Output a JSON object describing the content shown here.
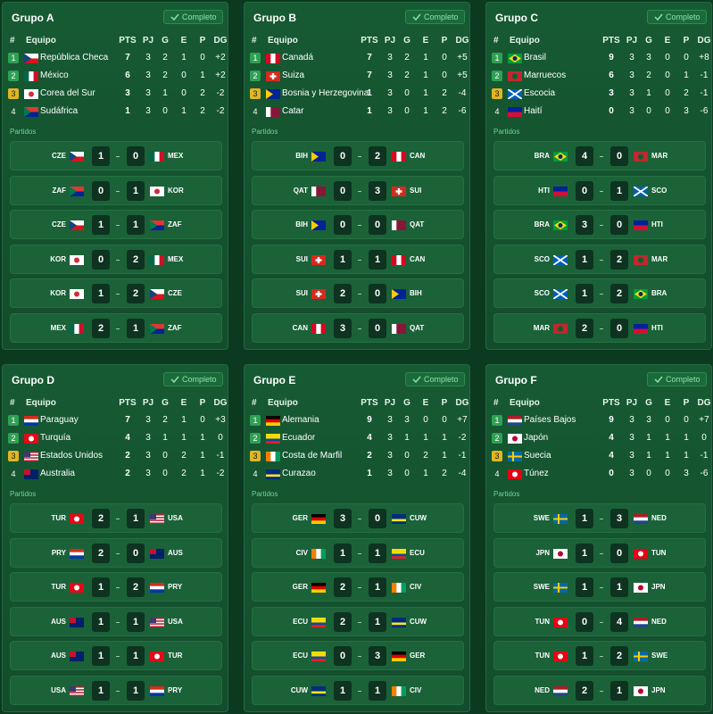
{
  "columns": [
    "#",
    "Equipo",
    "PTS",
    "PJ",
    "G",
    "E",
    "P",
    "DG"
  ],
  "status_label": "Completo",
  "matches_label": "Partidos",
  "flags": {
    "CZE": {
      "pattern": "tri",
      "colors": [
        "#ffffff",
        "#d7141a",
        "#11457e"
      ]
    },
    "MEX": {
      "pattern": "v",
      "colors": [
        "#006847",
        "#ffffff",
        "#ce1126"
      ]
    },
    "KOR": {
      "pattern": "disc",
      "colors": [
        "#ffffff",
        "#cd2e3a"
      ]
    },
    "ZAF": {
      "pattern": "tri",
      "colors": [
        "#de3831",
        "#002395",
        "#007a4d"
      ]
    },
    "CAN": {
      "pattern": "v",
      "colors": [
        "#d80621",
        "#ffffff",
        "#d80621"
      ]
    },
    "SUI": {
      "pattern": "swiss",
      "colors": [
        "#d52b1e",
        "#ffffff"
      ]
    },
    "BIH": {
      "pattern": "tri",
      "colors": [
        "#002395",
        "#002395",
        "#fecb00"
      ]
    },
    "QAT": {
      "pattern": "v",
      "colors": [
        "#ffffff",
        "#8a1538",
        "#8a1538"
      ]
    },
    "BRA": {
      "pattern": "diamond",
      "colors": [
        "#009c3b",
        "#ffdf00",
        "#002776"
      ]
    },
    "MAR": {
      "pattern": "disc",
      "colors": [
        "#c1272d",
        "#006233"
      ]
    },
    "SCO": {
      "pattern": "saltire",
      "colors": [
        "#005eb8",
        "#ffffff"
      ]
    },
    "HTI": {
      "pattern": "h",
      "colors": [
        "#00209f",
        "#d21034"
      ]
    },
    "PRY": {
      "pattern": "h",
      "colors": [
        "#d52b1e",
        "#ffffff",
        "#0038a8"
      ]
    },
    "TUR": {
      "pattern": "disc",
      "colors": [
        "#e30a17",
        "#ffffff"
      ]
    },
    "USA": {
      "pattern": "canton",
      "colors": [
        "#b22234",
        "#ffffff",
        "#3c3b6e"
      ]
    },
    "AUS": {
      "pattern": "canton",
      "colors": [
        "#012169",
        "#012169",
        "#c8102e"
      ]
    },
    "GER": {
      "pattern": "h",
      "colors": [
        "#000000",
        "#dd0000",
        "#ffce00"
      ]
    },
    "ECU": {
      "pattern": "h",
      "colors": [
        "#ffdd00",
        "#ffdd00",
        "#034ea2",
        "#ed1c24"
      ]
    },
    "CIV": {
      "pattern": "v",
      "colors": [
        "#f77f00",
        "#ffffff",
        "#009e60"
      ]
    },
    "CUW": {
      "pattern": "h",
      "colors": [
        "#002b7f",
        "#002b7f",
        "#f9e814",
        "#002b7f"
      ]
    },
    "NED": {
      "pattern": "h",
      "colors": [
        "#ae1c28",
        "#ffffff",
        "#21468b"
      ]
    },
    "JPN": {
      "pattern": "disc",
      "colors": [
        "#ffffff",
        "#bc002d"
      ]
    },
    "SWE": {
      "pattern": "cross",
      "colors": [
        "#006aa7",
        "#fecc02"
      ]
    },
    "TUN": {
      "pattern": "disc",
      "colors": [
        "#e70013",
        "#ffffff"
      ]
    }
  },
  "groups": [
    {
      "title": "Grupo A",
      "standings": [
        {
          "pos": 1,
          "code": "CZE",
          "team": "República Checa",
          "pts": 7,
          "pj": 3,
          "g": 2,
          "e": 1,
          "p": 0,
          "dg": "+2"
        },
        {
          "pos": 2,
          "code": "MEX",
          "team": "México",
          "pts": 6,
          "pj": 3,
          "g": 2,
          "e": 0,
          "p": 1,
          "dg": "+2"
        },
        {
          "pos": 3,
          "code": "KOR",
          "team": "Corea del Sur",
          "pts": 3,
          "pj": 3,
          "g": 1,
          "e": 0,
          "p": 2,
          "dg": "-2"
        },
        {
          "pos": 4,
          "code": "ZAF",
          "team": "Sudáfrica",
          "pts": 1,
          "pj": 3,
          "g": 0,
          "e": 1,
          "p": 2,
          "dg": "-2"
        }
      ],
      "matches": [
        {
          "home": "CZE",
          "home_goals": 1,
          "away_goals": 0,
          "away": "MEX"
        },
        {
          "home": "ZAF",
          "home_goals": 0,
          "away_goals": 1,
          "away": "KOR"
        },
        {
          "home": "CZE",
          "home_goals": 1,
          "away_goals": 1,
          "away": "ZAF"
        },
        {
          "home": "KOR",
          "home_goals": 0,
          "away_goals": 2,
          "away": "MEX"
        },
        {
          "home": "KOR",
          "home_goals": 1,
          "away_goals": 2,
          "away": "CZE"
        },
        {
          "home": "MEX",
          "home_goals": 2,
          "away_goals": 1,
          "away": "ZAF"
        }
      ]
    },
    {
      "title": "Grupo B",
      "standings": [
        {
          "pos": 1,
          "code": "CAN",
          "team": "Canadá",
          "pts": 7,
          "pj": 3,
          "g": 2,
          "e": 1,
          "p": 0,
          "dg": "+5"
        },
        {
          "pos": 2,
          "code": "SUI",
          "team": "Suiza",
          "pts": 7,
          "pj": 3,
          "g": 2,
          "e": 1,
          "p": 0,
          "dg": "+5"
        },
        {
          "pos": 3,
          "code": "BIH",
          "team": "Bosnia y Herzegovina",
          "pts": 1,
          "pj": 3,
          "g": 0,
          "e": 1,
          "p": 2,
          "dg": "-4"
        },
        {
          "pos": 4,
          "code": "QAT",
          "team": "Catar",
          "pts": 1,
          "pj": 3,
          "g": 0,
          "e": 1,
          "p": 2,
          "dg": "-6"
        }
      ],
      "matches": [
        {
          "home": "BIH",
          "home_goals": 0,
          "away_goals": 2,
          "away": "CAN"
        },
        {
          "home": "QAT",
          "home_goals": 0,
          "away_goals": 3,
          "away": "SUI"
        },
        {
          "home": "BIH",
          "home_goals": 0,
          "away_goals": 0,
          "away": "QAT"
        },
        {
          "home": "SUI",
          "home_goals": 1,
          "away_goals": 1,
          "away": "CAN"
        },
        {
          "home": "SUI",
          "home_goals": 2,
          "away_goals": 0,
          "away": "BIH"
        },
        {
          "home": "CAN",
          "home_goals": 3,
          "away_goals": 0,
          "away": "QAT"
        }
      ]
    },
    {
      "title": "Grupo C",
      "standings": [
        {
          "pos": 1,
          "code": "BRA",
          "team": "Brasil",
          "pts": 9,
          "pj": 3,
          "g": 3,
          "e": 0,
          "p": 0,
          "dg": "+8"
        },
        {
          "pos": 2,
          "code": "MAR",
          "team": "Marruecos",
          "pts": 6,
          "pj": 3,
          "g": 2,
          "e": 0,
          "p": 1,
          "dg": "-1"
        },
        {
          "pos": 3,
          "code": "SCO",
          "team": "Escocia",
          "pts": 3,
          "pj": 3,
          "g": 1,
          "e": 0,
          "p": 2,
          "dg": "-1"
        },
        {
          "pos": 4,
          "code": "HTI",
          "team": "Haití",
          "pts": 0,
          "pj": 3,
          "g": 0,
          "e": 0,
          "p": 3,
          "dg": "-6"
        }
      ],
      "matches": [
        {
          "home": "BRA",
          "home_goals": 4,
          "away_goals": 0,
          "away": "MAR"
        },
        {
          "home": "HTI",
          "home_goals": 0,
          "away_goals": 1,
          "away": "SCO"
        },
        {
          "home": "BRA",
          "home_goals": 3,
          "away_goals": 0,
          "away": "HTI"
        },
        {
          "home": "SCO",
          "home_goals": 1,
          "away_goals": 2,
          "away": "MAR"
        },
        {
          "home": "SCO",
          "home_goals": 1,
          "away_goals": 2,
          "away": "BRA"
        },
        {
          "home": "MAR",
          "home_goals": 2,
          "away_goals": 0,
          "away": "HTI"
        }
      ]
    },
    {
      "title": "Grupo D",
      "standings": [
        {
          "pos": 1,
          "code": "PRY",
          "team": "Paraguay",
          "pts": 7,
          "pj": 3,
          "g": 2,
          "e": 1,
          "p": 0,
          "dg": "+3"
        },
        {
          "pos": 2,
          "code": "TUR",
          "team": "Turquía",
          "pts": 4,
          "pj": 3,
          "g": 1,
          "e": 1,
          "p": 1,
          "dg": "0"
        },
        {
          "pos": 3,
          "code": "USA",
          "team": "Estados Unidos",
          "pts": 2,
          "pj": 3,
          "g": 0,
          "e": 2,
          "p": 1,
          "dg": "-1"
        },
        {
          "pos": 4,
          "code": "AUS",
          "team": "Australia",
          "pts": 2,
          "pj": 3,
          "g": 0,
          "e": 2,
          "p": 1,
          "dg": "-2"
        }
      ],
      "matches": [
        {
          "home": "TUR",
          "home_goals": 2,
          "away_goals": 1,
          "away": "USA"
        },
        {
          "home": "PRY",
          "home_goals": 2,
          "away_goals": 0,
          "away": "AUS"
        },
        {
          "home": "TUR",
          "home_goals": 1,
          "away_goals": 2,
          "away": "PRY"
        },
        {
          "home": "AUS",
          "home_goals": 1,
          "away_goals": 1,
          "away": "USA"
        },
        {
          "home": "AUS",
          "home_goals": 1,
          "away_goals": 1,
          "away": "TUR"
        },
        {
          "home": "USA",
          "home_goals": 1,
          "away_goals": 1,
          "away": "PRY"
        }
      ]
    },
    {
      "title": "Grupo E",
      "standings": [
        {
          "pos": 1,
          "code": "GER",
          "team": "Alemania",
          "pts": 9,
          "pj": 3,
          "g": 3,
          "e": 0,
          "p": 0,
          "dg": "+7"
        },
        {
          "pos": 2,
          "code": "ECU",
          "team": "Ecuador",
          "pts": 4,
          "pj": 3,
          "g": 1,
          "e": 1,
          "p": 1,
          "dg": "-2"
        },
        {
          "pos": 3,
          "code": "CIV",
          "team": "Costa de Marfil",
          "pts": 2,
          "pj": 3,
          "g": 0,
          "e": 2,
          "p": 1,
          "dg": "-1"
        },
        {
          "pos": 4,
          "code": "CUW",
          "team": "Curazao",
          "pts": 1,
          "pj": 3,
          "g": 0,
          "e": 1,
          "p": 2,
          "dg": "-4"
        }
      ],
      "matches": [
        {
          "home": "GER",
          "home_goals": 3,
          "away_goals": 0,
          "away": "CUW"
        },
        {
          "home": "CIV",
          "home_goals": 1,
          "away_goals": 1,
          "away": "ECU"
        },
        {
          "home": "GER",
          "home_goals": 2,
          "away_goals": 1,
          "away": "CIV"
        },
        {
          "home": "ECU",
          "home_goals": 2,
          "away_goals": 1,
          "away": "CUW"
        },
        {
          "home": "ECU",
          "home_goals": 0,
          "away_goals": 3,
          "away": "GER"
        },
        {
          "home": "CUW",
          "home_goals": 1,
          "away_goals": 1,
          "away": "CIV"
        }
      ]
    },
    {
      "title": "Grupo F",
      "standings": [
        {
          "pos": 1,
          "code": "NED",
          "team": "Países Bajos",
          "pts": 9,
          "pj": 3,
          "g": 3,
          "e": 0,
          "p": 0,
          "dg": "+7"
        },
        {
          "pos": 2,
          "code": "JPN",
          "team": "Japón",
          "pts": 4,
          "pj": 3,
          "g": 1,
          "e": 1,
          "p": 1,
          "dg": "0"
        },
        {
          "pos": 3,
          "code": "SWE",
          "team": "Suecia",
          "pts": 4,
          "pj": 3,
          "g": 1,
          "e": 1,
          "p": 1,
          "dg": "-1"
        },
        {
          "pos": 4,
          "code": "TUN",
          "team": "Túnez",
          "pts": 0,
          "pj": 3,
          "g": 0,
          "e": 0,
          "p": 3,
          "dg": "-6"
        }
      ],
      "matches": [
        {
          "home": "SWE",
          "home_goals": 1,
          "away_goals": 3,
          "away": "NED"
        },
        {
          "home": "JPN",
          "home_goals": 1,
          "away_goals": 0,
          "away": "TUN"
        },
        {
          "home": "SWE",
          "home_goals": 1,
          "away_goals": 1,
          "away": "JPN"
        },
        {
          "home": "TUN",
          "home_goals": 0,
          "away_goals": 4,
          "away": "NED"
        },
        {
          "home": "TUN",
          "home_goals": 1,
          "away_goals": 2,
          "away": "SWE"
        },
        {
          "home": "NED",
          "home_goals": 2,
          "away_goals": 1,
          "away": "JPN"
        }
      ]
    }
  ]
}
